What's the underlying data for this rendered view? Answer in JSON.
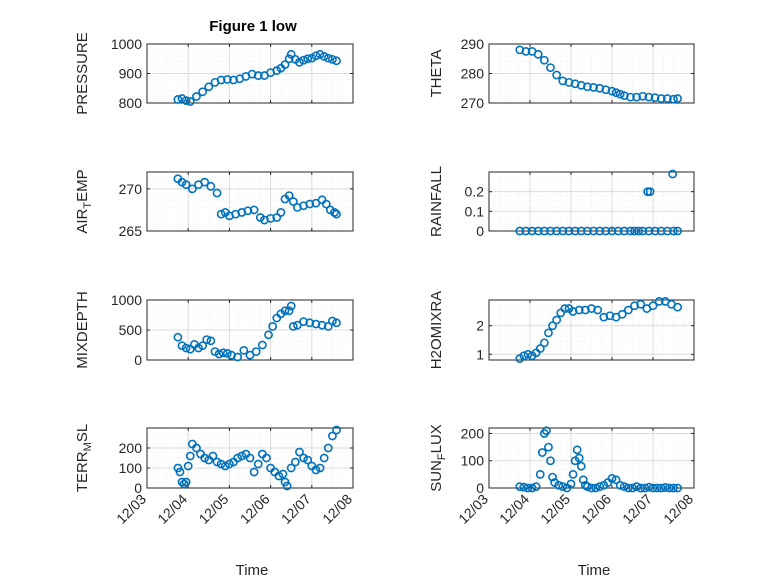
{
  "figure_title": "Figure 1 low",
  "x_axis_label": "Time",
  "x_tick_labels": [
    "12/03",
    "12/04",
    "12/05",
    "12/06",
    "12/07",
    "12/08"
  ],
  "colors": {
    "marker": "#0072BD",
    "axis": "#262626",
    "grid": "#dcdcdc",
    "minor_grid": "#ececec"
  },
  "chart_data": [
    {
      "type": "scatter",
      "title": "Figure 1 low",
      "ylabel": "PRESSURE",
      "xlim": [
        0,
        5
      ],
      "ylim": [
        800,
        1000
      ],
      "yticks": [
        800,
        900,
        1000
      ],
      "ytick_labels": [
        "800",
        "900",
        "1000"
      ],
      "x": [
        0.75,
        0.85,
        0.95,
        1.05,
        1.2,
        1.35,
        1.5,
        1.65,
        1.8,
        1.95,
        2.1,
        2.25,
        2.4,
        2.55,
        2.7,
        2.85,
        3.0,
        3.15,
        3.25,
        3.35,
        3.45,
        3.5,
        3.6,
        3.7,
        3.8,
        3.9,
        4.0,
        4.1,
        4.2,
        4.3,
        4.4,
        4.5,
        4.6
      ],
      "y": [
        812,
        815,
        808,
        805,
        822,
        838,
        855,
        870,
        878,
        880,
        878,
        882,
        890,
        898,
        893,
        893,
        903,
        910,
        918,
        930,
        950,
        965,
        948,
        938,
        945,
        950,
        952,
        960,
        965,
        958,
        952,
        948,
        943
      ]
    },
    {
      "type": "scatter",
      "ylabel": "THETA",
      "xlim": [
        0,
        5
      ],
      "ylim": [
        270,
        290
      ],
      "yticks": [
        270,
        280,
        290
      ],
      "ytick_labels": [
        "270",
        "280",
        "290"
      ],
      "x": [
        0.75,
        0.9,
        1.05,
        1.2,
        1.35,
        1.5,
        1.65,
        1.8,
        1.95,
        2.1,
        2.25,
        2.4,
        2.55,
        2.7,
        2.85,
        3.0,
        3.1,
        3.2,
        3.3,
        3.45,
        3.6,
        3.75,
        3.9,
        4.05,
        4.2,
        4.35,
        4.5,
        4.6
      ],
      "y": [
        288,
        287.5,
        287.5,
        286.5,
        284.5,
        282,
        279.5,
        277.5,
        277,
        276.5,
        276,
        275.5,
        275.3,
        275,
        274.5,
        274,
        273.5,
        273,
        272.5,
        272,
        272,
        272.3,
        272,
        271.8,
        271.5,
        271.5,
        271.3,
        271.5
      ]
    },
    {
      "type": "scatter",
      "ylabel": "AIR_TEMP",
      "xlim": [
        0,
        5
      ],
      "ylim": [
        265,
        272
      ],
      "yticks": [
        265,
        270
      ],
      "ytick_labels": [
        "265",
        "270"
      ],
      "x": [
        0.75,
        0.85,
        0.95,
        1.1,
        1.25,
        1.4,
        1.55,
        1.7,
        1.8,
        1.9,
        2.0,
        2.15,
        2.3,
        2.45,
        2.6,
        2.75,
        2.85,
        3.0,
        3.15,
        3.25,
        3.35,
        3.45,
        3.55,
        3.65,
        3.8,
        3.95,
        4.1,
        4.25,
        4.35,
        4.45,
        4.55,
        4.6
      ],
      "y": [
        271.2,
        270.8,
        270.5,
        270,
        270.5,
        270.8,
        270.3,
        269.5,
        267,
        267.2,
        266.8,
        267,
        267.2,
        267.4,
        267.5,
        266.6,
        266.3,
        266.5,
        266.6,
        267.2,
        268.8,
        269.2,
        268.5,
        267.8,
        268,
        268.2,
        268.3,
        268.7,
        268.2,
        267.5,
        267.2,
        267
      ]
    },
    {
      "type": "scatter",
      "ylabel": "RAINFALL",
      "xlim": [
        0,
        5
      ],
      "ylim": [
        0,
        0.3
      ],
      "yticks": [
        0,
        0.1,
        0.2
      ],
      "ytick_labels": [
        "0",
        "0.1",
        "0.2"
      ],
      "x": [
        0.75,
        0.9,
        1.05,
        1.2,
        1.35,
        1.5,
        1.65,
        1.8,
        1.95,
        2.1,
        2.25,
        2.4,
        2.55,
        2.7,
        2.85,
        3.0,
        3.15,
        3.3,
        3.45,
        3.55,
        3.65,
        3.75,
        3.9,
        4.05,
        4.2,
        4.35,
        4.5,
        4.6,
        3.87,
        3.93,
        4.48
      ],
      "y": [
        0,
        0,
        0,
        0,
        0,
        0,
        0,
        0,
        0,
        0,
        0,
        0,
        0,
        0,
        0,
        0,
        0,
        0,
        0,
        0,
        0,
        0,
        0,
        0,
        0,
        0,
        0,
        0,
        0.2,
        0.2,
        0.29
      ]
    },
    {
      "type": "scatter",
      "ylabel": "MIXDEPTH",
      "xlim": [
        0,
        5
      ],
      "ylim": [
        0,
        1000
      ],
      "yticks": [
        0,
        500,
        1000
      ],
      "ytick_labels": [
        "0",
        "500",
        "1000"
      ],
      "x": [
        0.75,
        0.85,
        0.95,
        1.05,
        1.15,
        1.25,
        1.35,
        1.45,
        1.55,
        1.65,
        1.75,
        1.85,
        1.95,
        2.05,
        2.2,
        2.35,
        2.5,
        2.65,
        2.8,
        2.95,
        3.05,
        3.15,
        3.25,
        3.35,
        3.45,
        3.5,
        3.55,
        3.65,
        3.8,
        3.95,
        4.1,
        4.25,
        4.4,
        4.5,
        4.6
      ],
      "y": [
        380,
        240,
        200,
        180,
        260,
        200,
        240,
        340,
        320,
        140,
        100,
        120,
        110,
        80,
        50,
        160,
        80,
        140,
        250,
        420,
        560,
        700,
        770,
        820,
        820,
        900,
        560,
        580,
        640,
        620,
        600,
        580,
        560,
        650,
        620
      ]
    },
    {
      "type": "scatter",
      "ylabel": "H2OMIXRA",
      "xlim": [
        0,
        5
      ],
      "ylim": [
        0.8,
        2.9
      ],
      "yticks": [
        1,
        2
      ],
      "ytick_labels": [
        "1",
        "2"
      ],
      "x": [
        0.75,
        0.85,
        0.95,
        1.05,
        1.15,
        1.25,
        1.35,
        1.45,
        1.55,
        1.65,
        1.75,
        1.85,
        1.95,
        2.05,
        2.2,
        2.35,
        2.5,
        2.65,
        2.8,
        2.95,
        3.1,
        3.25,
        3.4,
        3.55,
        3.7,
        3.85,
        4.0,
        4.15,
        4.3,
        4.45,
        4.6
      ],
      "y": [
        0.85,
        0.95,
        1.0,
        0.95,
        1.05,
        1.2,
        1.4,
        1.75,
        2.0,
        2.2,
        2.45,
        2.6,
        2.6,
        2.5,
        2.55,
        2.55,
        2.6,
        2.55,
        2.3,
        2.35,
        2.3,
        2.4,
        2.55,
        2.7,
        2.75,
        2.6,
        2.7,
        2.85,
        2.85,
        2.75,
        2.65
      ]
    },
    {
      "type": "scatter",
      "ylabel": "TERR_MSL",
      "xlim": [
        0,
        5
      ],
      "ylim": [
        0,
        300
      ],
      "yticks": [
        0,
        100,
        200
      ],
      "ytick_labels": [
        "0",
        "100",
        "200"
      ],
      "x": [
        0.75,
        0.8,
        0.85,
        0.9,
        0.95,
        1.0,
        1.05,
        1.1,
        1.2,
        1.3,
        1.4,
        1.5,
        1.6,
        1.7,
        1.8,
        1.9,
        2.0,
        2.1,
        2.2,
        2.3,
        2.4,
        2.5,
        2.6,
        2.7,
        2.8,
        2.9,
        3.0,
        3.1,
        3.2,
        3.3,
        3.35,
        3.4,
        3.5,
        3.6,
        3.7,
        3.8,
        3.9,
        4.0,
        4.1,
        4.2,
        4.3,
        4.4,
        4.5,
        4.6
      ],
      "y": [
        100,
        80,
        30,
        20,
        30,
        110,
        160,
        220,
        200,
        170,
        150,
        140,
        160,
        130,
        120,
        110,
        120,
        130,
        150,
        160,
        170,
        150,
        80,
        120,
        170,
        150,
        100,
        80,
        60,
        70,
        30,
        10,
        100,
        130,
        180,
        150,
        140,
        110,
        90,
        100,
        150,
        200,
        260,
        290
      ]
    },
    {
      "type": "scatter",
      "ylabel": "SUN_FLUX",
      "xlim": [
        0,
        5
      ],
      "ylim": [
        0,
        220
      ],
      "yticks": [
        0,
        100,
        200
      ],
      "ytick_labels": [
        "0",
        "100",
        "200"
      ],
      "x": [
        0.75,
        0.85,
        0.95,
        1.05,
        1.15,
        1.25,
        1.3,
        1.35,
        1.4,
        1.45,
        1.5,
        1.55,
        1.6,
        1.7,
        1.8,
        1.9,
        2.0,
        2.05,
        2.1,
        2.15,
        2.2,
        2.25,
        2.3,
        2.35,
        2.4,
        2.5,
        2.6,
        2.7,
        2.8,
        2.9,
        3.0,
        3.1,
        3.2,
        3.3,
        3.4,
        3.5,
        3.6,
        3.7,
        3.8,
        3.9,
        4.0,
        4.1,
        4.2,
        4.3,
        4.4,
        4.5,
        4.6
      ],
      "y": [
        5,
        3,
        0,
        0,
        5,
        50,
        130,
        200,
        210,
        150,
        100,
        40,
        20,
        10,
        5,
        0,
        15,
        50,
        100,
        140,
        110,
        80,
        30,
        10,
        5,
        0,
        0,
        5,
        10,
        20,
        35,
        30,
        10,
        5,
        0,
        0,
        5,
        0,
        0,
        3,
        0,
        0,
        0,
        2,
        0,
        0,
        0
      ]
    }
  ]
}
